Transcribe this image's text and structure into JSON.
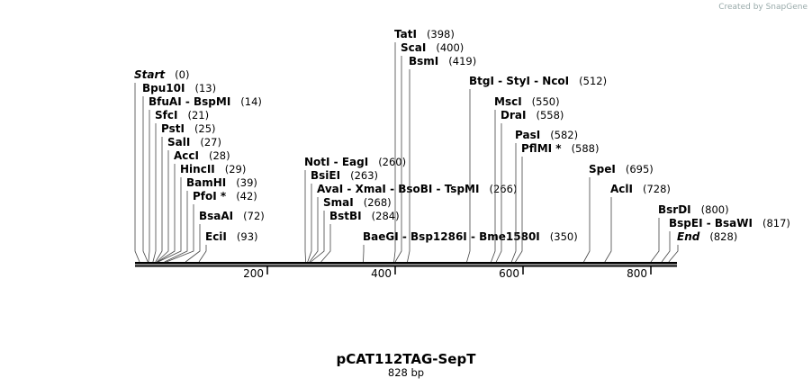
{
  "watermark": "Created by SnapGene",
  "map": {
    "title": "pCAT112TAG-SepT",
    "length": "828 bp",
    "ruler_ticks": [
      200,
      400,
      600,
      800
    ],
    "sites": [
      {
        "name": "Start",
        "site": "(0)"
      },
      {
        "name": "Bpu10I",
        "site": "(13)"
      },
      {
        "name": "BfuAI  -  BspMI",
        "site": "(14)"
      },
      {
        "name": "SfcI",
        "site": "(21)"
      },
      {
        "name": "PstI",
        "site": "(25)"
      },
      {
        "name": "SalI",
        "site": "(27)"
      },
      {
        "name": "AccI",
        "site": "(28)"
      },
      {
        "name": "HincII",
        "site": "(29)"
      },
      {
        "name": "BamHI",
        "site": "(39)"
      },
      {
        "name": "PfoI *",
        "site": "(42)"
      },
      {
        "name": "BsaAI",
        "site": "(72)"
      },
      {
        "name": "EciI",
        "site": "(93)"
      },
      {
        "name": "NotI  -  EagI",
        "site": "(260)"
      },
      {
        "name": "BsiEI",
        "site": "(263)"
      },
      {
        "name": "AvaI  -  XmaI  -  BsoBI  -  TspMI",
        "site": "(266)"
      },
      {
        "name": "SmaI",
        "site": "(268)"
      },
      {
        "name": "BstBI",
        "site": "(284)"
      },
      {
        "name": "BaeGI  -  Bsp1286I  -  Bme1580I",
        "site": "(350)"
      },
      {
        "name": "TatI",
        "site": "(398)"
      },
      {
        "name": "ScaI",
        "site": "(400)"
      },
      {
        "name": "BsmI",
        "site": "(419)"
      },
      {
        "name": "BtgI  -  StyI  -  NcoI",
        "site": "(512)"
      },
      {
        "name": "MscI",
        "site": "(550)"
      },
      {
        "name": "DraI",
        "site": "(558)"
      },
      {
        "name": "PasI",
        "site": "(582)"
      },
      {
        "name": "PflMI *",
        "site": "(588)"
      },
      {
        "name": "SpeI",
        "site": "(695)"
      },
      {
        "name": "AclI",
        "site": "(728)"
      },
      {
        "name": "BsrDI",
        "site": "(800)"
      },
      {
        "name": "BspEI  -  BsaWI",
        "site": "(817)"
      },
      {
        "name": "End",
        "site": "(828)"
      }
    ]
  }
}
